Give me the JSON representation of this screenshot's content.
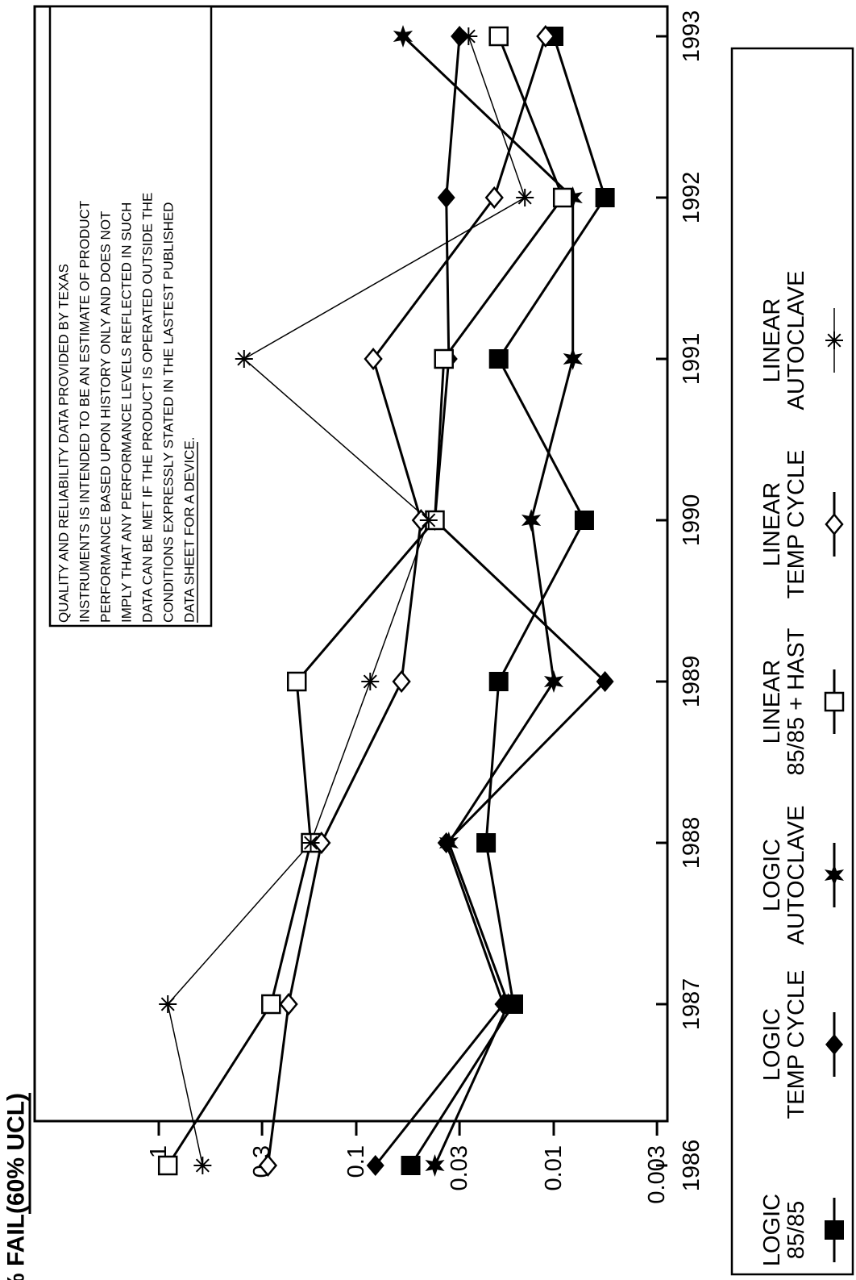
{
  "chart_data": {
    "type": "line",
    "ylabel": "% FAIL",
    "ylabel_note": "(60% UCL)",
    "y_scale": "log",
    "ylim": [
      0.003,
      1.3
    ],
    "x": [
      1986,
      1987,
      1988,
      1989,
      1990,
      1991,
      1992,
      1993
    ],
    "x_tick_labels": [
      "1986",
      "1987",
      "1988",
      "1989",
      "1990",
      "1991",
      "1992",
      "1993"
    ],
    "y_ticks": [
      1,
      0.3,
      0.1,
      0.03,
      0.01,
      0.003
    ],
    "y_tick_labels": [
      "1",
      "0.3",
      "0.1",
      "0.03",
      "0.01",
      "0.003"
    ],
    "grid": false,
    "legend_position": "bottom",
    "note": [
      "QUALITY AND RELIABILITY DATA PROVIDED BY TEXAS",
      "INSTRUMENTS IS INTENDED TO BE AN ESTIMATE OF PRODUCT",
      "PERFORMANCE BASED UPON HISTORY ONLY AND DOES NOT",
      "IMPLY THAT ANY PERFORMANCE LEVELS  REFLECTED IN SUCH",
      "DATA CAN BE MET IF THE PRODUCT IS OPERATED OUTSIDE THE",
      "CONDITIONS EXPRESSLY STATED IN THE LASTEST PUBLISHED",
      "DATA SHEET FOR A DEVICE."
    ],
    "series": [
      {
        "name": "LOGIC\n85/85",
        "marker": "filled-square",
        "values": [
          0.053,
          0.016,
          0.022,
          0.019,
          0.007,
          0.019,
          0.0055,
          0.01
        ]
      },
      {
        "name": "LOGIC\nTEMP CYCLE",
        "marker": "filled-diamond",
        "values": [
          0.08,
          0.018,
          0.035,
          0.0055,
          0.04,
          0.034,
          0.035,
          0.03
        ]
      },
      {
        "name": "LOGIC\nAUTOCLAVE",
        "marker": "filled-star",
        "values": [
          0.04,
          0.017,
          0.034,
          0.01,
          0.013,
          0.008,
          0.008,
          0.058
        ]
      },
      {
        "name": "LINEAR\n85/85 + HAST",
        "marker": "open-square",
        "values": [
          0.9,
          0.27,
          0.17,
          0.2,
          0.04,
          0.036,
          0.009,
          0.019
        ]
      },
      {
        "name": "LINEAR\nTEMP CYCLE",
        "marker": "open-diamond",
        "values": [
          0.28,
          0.22,
          0.15,
          0.059,
          0.047,
          0.082,
          0.02,
          0.011
        ]
      },
      {
        "name": "LINEAR\nAUTOCLAVE",
        "marker": "asterisk",
        "values": [
          0.6,
          0.9,
          0.17,
          0.085,
          0.043,
          0.37,
          0.014,
          0.027
        ]
      }
    ]
  }
}
